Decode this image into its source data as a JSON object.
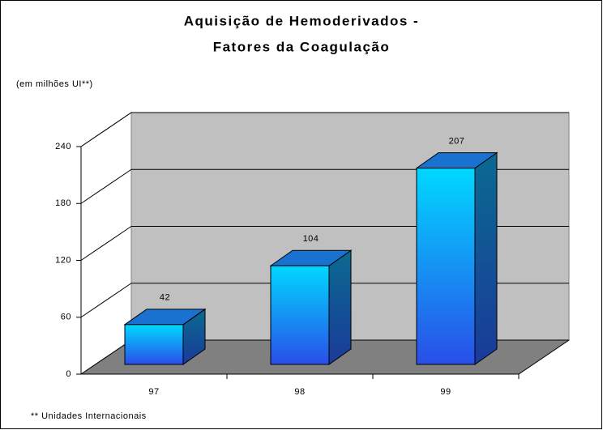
{
  "chart_data": {
    "type": "bar3d",
    "title": "Aquisição de Hemoderivados -",
    "subtitle": "Fatores da Coagulação",
    "y_label": "(em milhões UI**)",
    "footnote": "** Unidades Internacionais",
    "categories": [
      "97",
      "98",
      "99"
    ],
    "values": [
      42,
      104,
      207
    ],
    "ylim": [
      0,
      240
    ],
    "yticks": [
      0,
      60,
      120,
      180,
      240
    ],
    "grid": true
  }
}
